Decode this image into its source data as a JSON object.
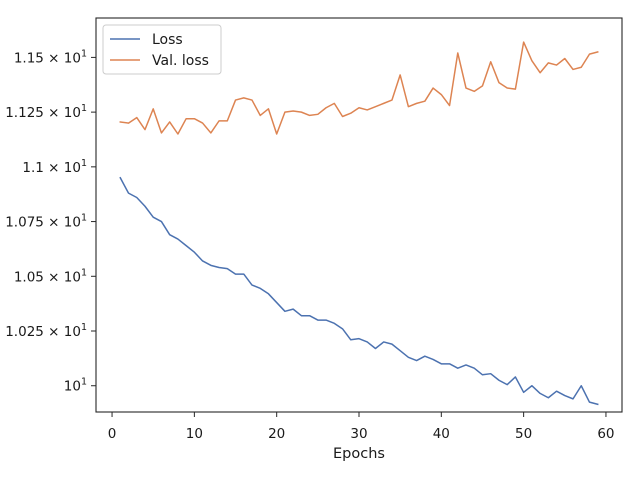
{
  "chart_data": {
    "type": "line",
    "title": "",
    "xlabel": "Epochs",
    "ylabel": "",
    "xlim": [
      -1.95,
      61.95
    ],
    "ylim": [
      9.88,
      11.68
    ],
    "x_ticks": [
      {
        "value": 0,
        "label": "0"
      },
      {
        "value": 10,
        "label": "10"
      },
      {
        "value": 20,
        "label": "20"
      },
      {
        "value": 30,
        "label": "30"
      },
      {
        "value": 40,
        "label": "40"
      },
      {
        "value": 50,
        "label": "50"
      },
      {
        "value": 60,
        "label": "60"
      }
    ],
    "y_ticks": [
      {
        "value": 10.0,
        "base": "10",
        "exp": "1"
      },
      {
        "value": 10.25,
        "base": "1.025 × 10",
        "exp": "1"
      },
      {
        "value": 10.5,
        "base": "1.05 × 10",
        "exp": "1"
      },
      {
        "value": 10.75,
        "base": "1.075 × 10",
        "exp": "1"
      },
      {
        "value": 11.0,
        "base": "1.1 × 10",
        "exp": "1"
      },
      {
        "value": 11.25,
        "base": "1.125 × 10",
        "exp": "1"
      },
      {
        "value": 11.5,
        "base": "1.15 × 10",
        "exp": "1"
      }
    ],
    "legend_position": "top-left",
    "grid": false,
    "x": [
      1,
      2,
      3,
      4,
      5,
      6,
      7,
      8,
      9,
      10,
      11,
      12,
      13,
      14,
      15,
      16,
      17,
      18,
      19,
      20,
      21,
      22,
      23,
      24,
      25,
      26,
      27,
      28,
      29,
      30,
      31,
      32,
      33,
      34,
      35,
      36,
      37,
      38,
      39,
      40,
      41,
      42,
      43,
      44,
      45,
      46,
      47,
      48,
      49,
      50,
      51,
      52,
      53,
      54,
      55,
      56,
      57,
      58,
      59
    ],
    "series": [
      {
        "name": "Loss",
        "color": "#4c72b0",
        "values": [
          10.95,
          10.88,
          10.86,
          10.82,
          10.77,
          10.75,
          10.69,
          10.67,
          10.64,
          10.61,
          10.57,
          10.55,
          10.54,
          10.535,
          10.51,
          10.51,
          10.46,
          10.445,
          10.42,
          10.38,
          10.34,
          10.35,
          10.32,
          10.32,
          10.3,
          10.3,
          10.285,
          10.26,
          10.21,
          10.215,
          10.2,
          10.17,
          10.2,
          10.19,
          10.16,
          10.13,
          10.115,
          10.135,
          10.12,
          10.1,
          10.1,
          10.08,
          10.095,
          10.08,
          10.05,
          10.055,
          10.025,
          10.005,
          10.04,
          9.97,
          10.0,
          9.965,
          9.945,
          9.975,
          9.955,
          9.94,
          10.0,
          9.925,
          9.915
        ]
      },
      {
        "name": "Val. loss",
        "color": "#dd8452",
        "values": [
          11.205,
          11.2,
          11.225,
          11.17,
          11.265,
          11.155,
          11.205,
          11.15,
          11.22,
          11.22,
          11.2,
          11.155,
          11.21,
          11.21,
          11.305,
          11.315,
          11.305,
          11.235,
          11.265,
          11.15,
          11.25,
          11.255,
          11.25,
          11.235,
          11.24,
          11.27,
          11.29,
          11.23,
          11.245,
          11.27,
          11.26,
          11.275,
          11.29,
          11.305,
          11.42,
          11.275,
          11.29,
          11.3,
          11.36,
          11.33,
          11.28,
          11.52,
          11.36,
          11.345,
          11.37,
          11.48,
          11.385,
          11.36,
          11.355,
          11.57,
          11.485,
          11.43,
          11.475,
          11.465,
          11.495,
          11.445,
          11.455,
          11.515,
          11.525
        ]
      }
    ]
  }
}
